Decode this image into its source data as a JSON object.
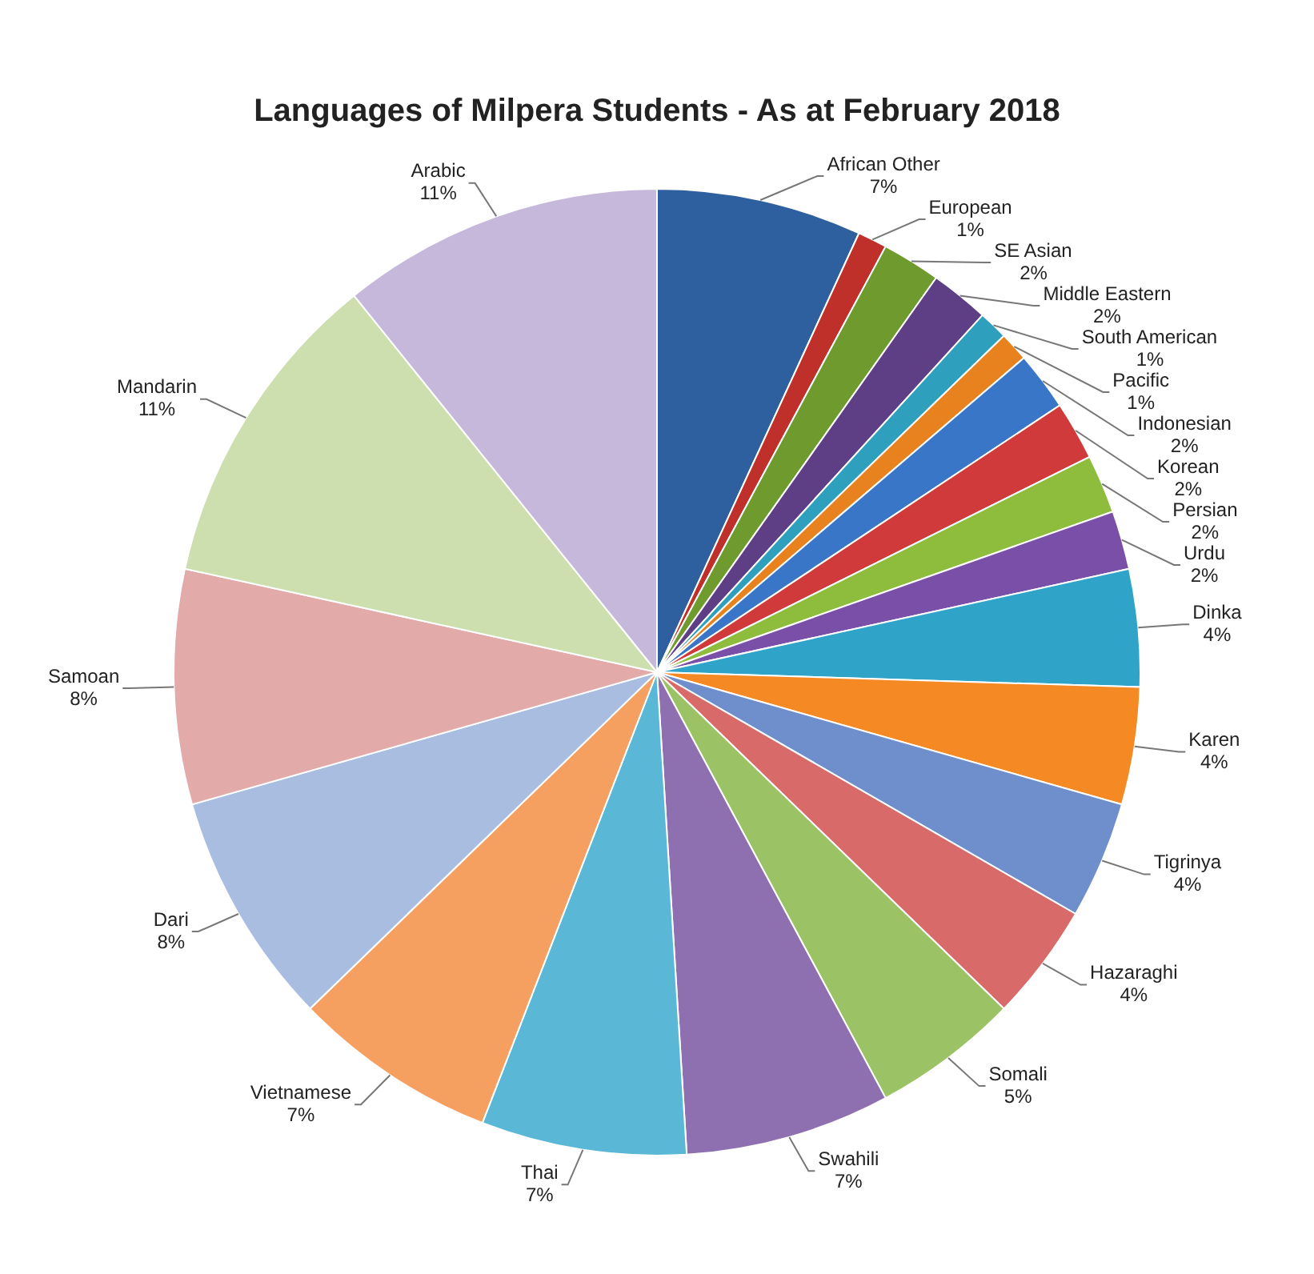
{
  "chart_data": {
    "type": "pie",
    "title": "Languages of Milpera Students - As at February 2018",
    "categories": [
      "African Other",
      "European",
      "SE Asian",
      "Middle Eastern",
      "South American",
      "Pacific",
      "Indonesian",
      "Korean",
      "Persian",
      "Urdu",
      "Dinka",
      "Karen",
      "Tigrinya",
      "Hazaraghi",
      "Somali",
      "Swahili",
      "Thai",
      "Vietnamese",
      "Dari",
      "Samoan",
      "Mandarin",
      "Arabic"
    ],
    "values": [
      7,
      1,
      2,
      2,
      1,
      1,
      2,
      2,
      2,
      2,
      4,
      4,
      4,
      4,
      5,
      7,
      7,
      7,
      8,
      8,
      11,
      11
    ],
    "value_labels": [
      "7%",
      "1%",
      "2%",
      "2%",
      "1%",
      "1%",
      "2%",
      "2%",
      "2%",
      "2%",
      "4%",
      "4%",
      "4%",
      "4%",
      "5%",
      "7%",
      "7%",
      "7%",
      "8%",
      "8%",
      "11%",
      "11%"
    ],
    "colors": [
      "#2e5f9e",
      "#c0302a",
      "#6f9a2e",
      "#5e3f86",
      "#2e9fbc",
      "#e8821e",
      "#3a76c8",
      "#d03a3a",
      "#8ebd3e",
      "#7a4fa8",
      "#2fa4c8",
      "#f58a25",
      "#6e8fcc",
      "#d96a6a",
      "#9cc266",
      "#8e70b0",
      "#5ab8d6",
      "#f5a060",
      "#a9bde0",
      "#e3aaaa",
      "#cddfae",
      "#c5b8da"
    ],
    "legend": false
  }
}
